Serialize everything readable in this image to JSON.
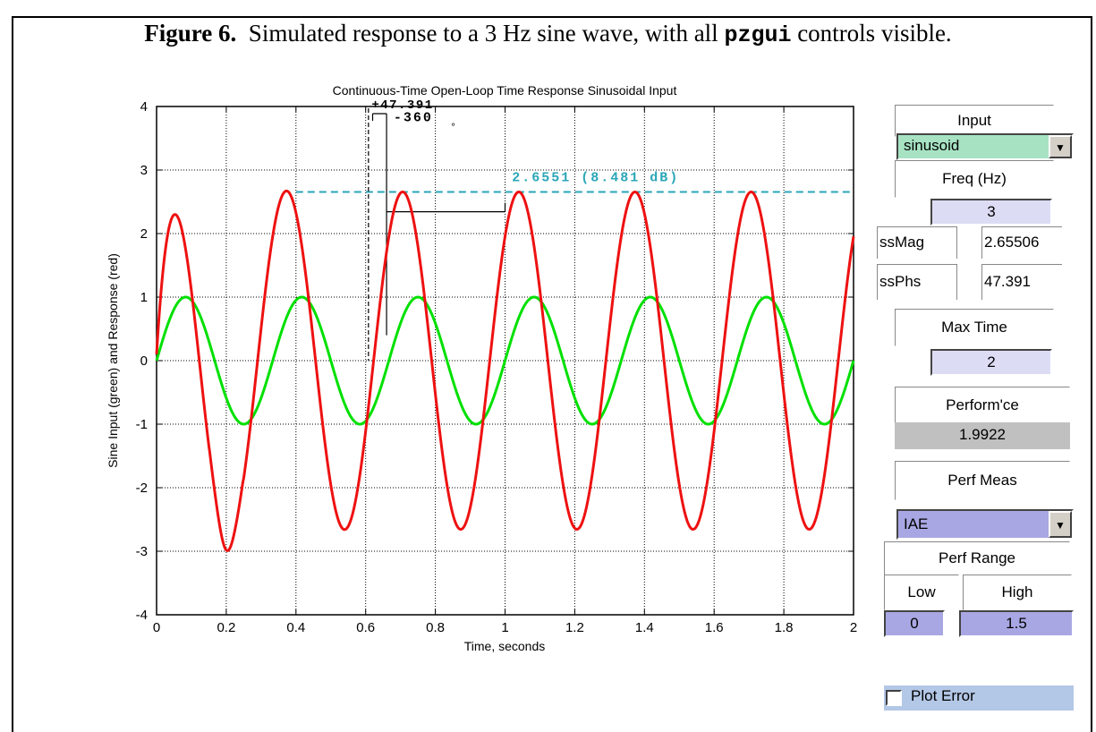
{
  "caption": {
    "figure_label": "Figure 6.",
    "text_before": "Simulated response to a 3 Hz sine wave, with all",
    "code": "pzgui",
    "text_after": "controls visible."
  },
  "chart_data": {
    "type": "line",
    "title": "Continuous-Time Open-Loop Time Response Sinusoidal Input",
    "xlabel": "Time, seconds",
    "ylabel": "Sine Input (green) and Response (red)",
    "xlim": [
      0,
      2
    ],
    "ylim": [
      -4,
      4
    ],
    "xticks": [
      "0",
      "0.2",
      "0.4",
      "0.6",
      "0.8",
      "1",
      "1.2",
      "1.4",
      "1.6",
      "1.8",
      "2"
    ],
    "yticks": [
      "4",
      "3",
      "2",
      "1",
      "0",
      "-1",
      "-2",
      "-3",
      "-4"
    ],
    "grid": true,
    "series": [
      {
        "color": "#00e000",
        "frequency_hz": 3,
        "amplitude": 1,
        "phase_deg": 0
      },
      {
        "color": "#ee1111",
        "frequency_hz": 3,
        "amplitude": 2.6551,
        "phase_deg": 47.391,
        "first_peak": 2.93,
        "first_trough": -3.0
      }
    ],
    "annotations": {
      "phase_label": "+47.391",
      "period_label": "-360",
      "degree_symbol": "°",
      "mag_label": "2.6551 (8.481 dB)",
      "mag_level": 2.6551,
      "annotation_color": "#2aa6b8"
    }
  },
  "controls": {
    "input_label": "Input",
    "input_value": "sinusoid",
    "freq_label": "Freq (Hz)",
    "freq_value": "3",
    "ssmag_label": "ssMag",
    "ssmag_value": "2.65506",
    "ssphs_label": "ssPhs",
    "ssphs_value": "47.391",
    "maxtime_label": "Max Time",
    "maxtime_value": "2",
    "perform_label": "Perform'ce",
    "perform_value": "1.9922",
    "perfmeas_label": "Perf Meas",
    "perfmeas_value": "IAE",
    "perfrange_label": "Perf Range",
    "low_label": "Low",
    "high_label": "High",
    "low_value": "0",
    "high_value": "1.5",
    "plot_error_label": "Plot Error",
    "plot_error_checked": false
  },
  "colors": {
    "input_popup_bg": "#a7e3c3",
    "perfmeas_popup_bg": "#a9a7e3",
    "edit_bg": "#dcdcf5",
    "range_bg": "#a9a7e3",
    "plot_error_bg": "#b3c7e6"
  }
}
